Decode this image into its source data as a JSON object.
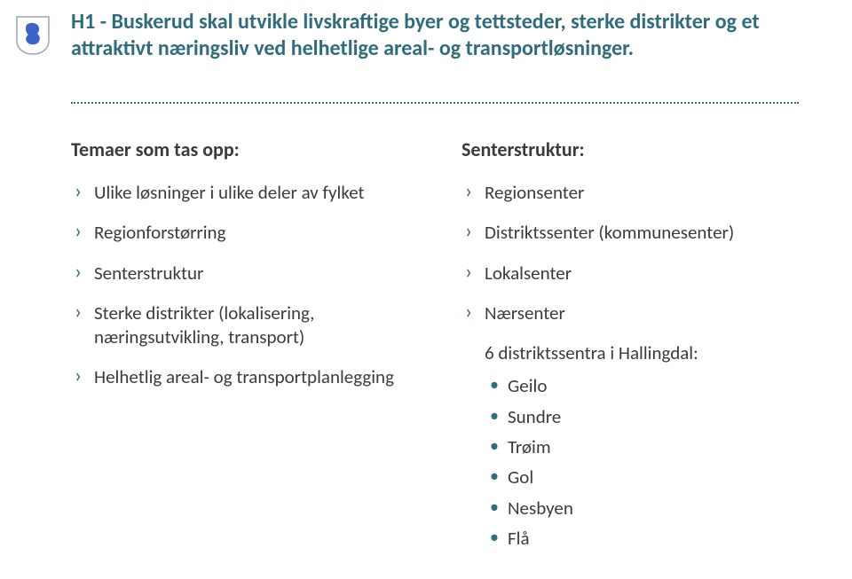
{
  "colors": {
    "heading": "#2f6d7e",
    "body": "#3b3b3b",
    "divider": "#2f6d7e",
    "chevron": "#2f6d7e",
    "dot": "#2f6d7e",
    "logo_border": "#9aa7b0",
    "logo_fill": "#ffffff",
    "logo_lion": "#3b63c9"
  },
  "heading": "H1 - Buskerud skal utvikle livskraftige byer og tettsteder, sterke distrikter og et attraktivt næringsliv ved helhetlige areal- og transportløsninger.",
  "left": {
    "title": "Temaer som tas opp:",
    "items": [
      "Ulike løsninger i ulike deler av fylket",
      "Regionforstørring",
      "Senterstruktur",
      "Sterke distrikter (lokalisering, næringsutvikling, transport)",
      "Helhetlig areal- og transportplanlegging"
    ]
  },
  "right": {
    "title": "Senterstruktur:",
    "items": [
      "Regionsenter",
      "Distriktssenter (kommunesenter)",
      "Lokalsenter",
      "Nærsenter"
    ],
    "sub_intro": "6 distriktssentra i Hallingdal:",
    "sub_items": [
      "Geilo",
      "Sundre",
      "Trøim",
      "Gol",
      "Nesbyen",
      "Flå"
    ]
  }
}
